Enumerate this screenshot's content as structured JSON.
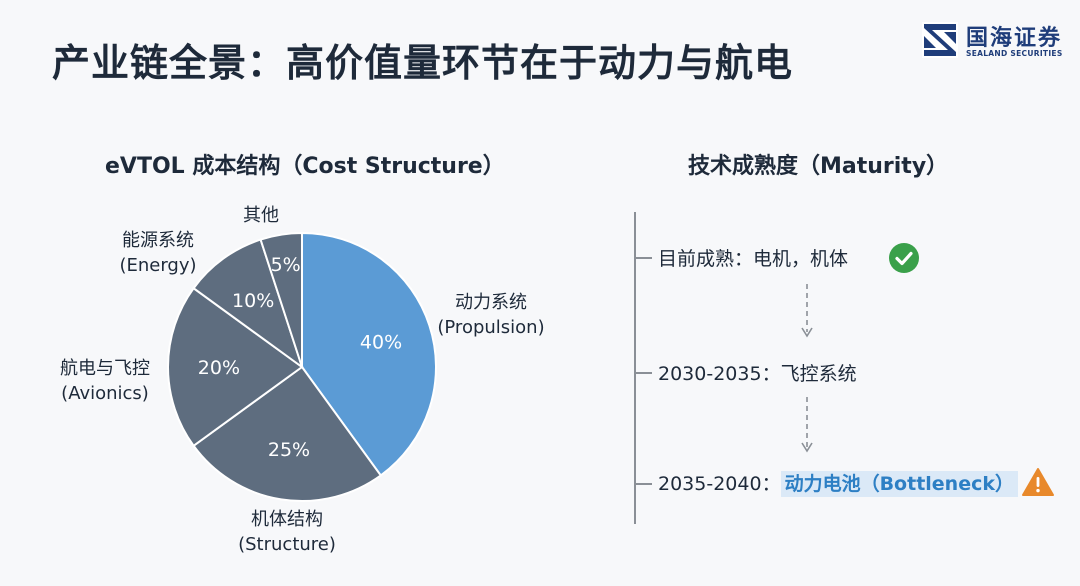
{
  "header": {
    "title": "产业链全景：高价值量环节在于动力与航电",
    "logo_cn": "国海证券",
    "logo_en": "SEALAND SECURITIES"
  },
  "colors": {
    "highlight_slice": "#5b9bd5",
    "slice": "#5e6d7f",
    "slice_border": "#ffffff",
    "check": "#3aa04a",
    "warning": "#e8892b"
  },
  "chart_data": {
    "type": "pie",
    "title": "eVTOL 成本结构（Cost Structure）",
    "slices": [
      {
        "label_cn": "动力系统",
        "label_en": "(Propulsion)",
        "value": 40,
        "value_label": "40%",
        "highlight": true
      },
      {
        "label_cn": "机体结构",
        "label_en": "(Structure)",
        "value": 25,
        "value_label": "25%",
        "highlight": false
      },
      {
        "label_cn": "航电与飞控",
        "label_en": "(Avionics)",
        "value": 20,
        "value_label": "20%",
        "highlight": false
      },
      {
        "label_cn": "能源系统",
        "label_en": "(Energy)",
        "value": 10,
        "value_label": "10%",
        "highlight": false
      },
      {
        "label_cn": "其他",
        "label_en": "",
        "value": 5,
        "value_label": "5%",
        "highlight": false
      }
    ]
  },
  "maturity": {
    "title": "技术成熟度（Maturity）",
    "stages": [
      {
        "prefix": "目前成熟：电机，机体",
        "highlight": "",
        "status": "check-icon"
      },
      {
        "prefix": "2030-2035：飞控系统",
        "highlight": "",
        "status": ""
      },
      {
        "prefix": "2035-2040：",
        "highlight": "动力电池（Bottleneck）",
        "status": "warning-icon"
      }
    ]
  }
}
